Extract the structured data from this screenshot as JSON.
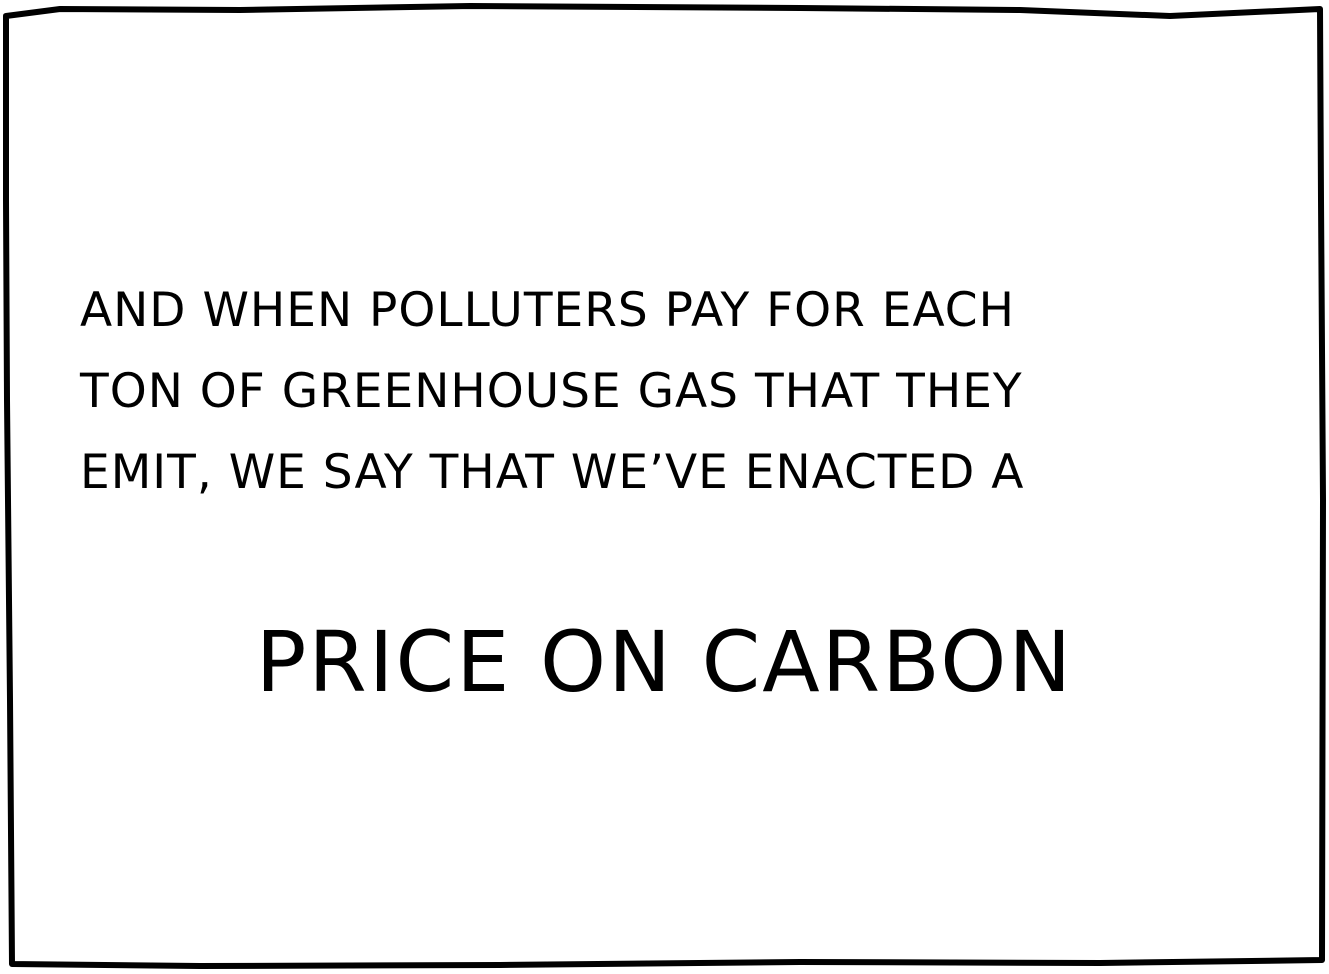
{
  "panel": {
    "caption_lines": [
      "AND WHEN POLLUTERS PAY FOR EACH",
      "TON OF GREENHOUSE GAS THAT THEY",
      "EMIT, WE SAY THAT WE’VE ENACTED A"
    ],
    "emphasis": "PRICE ON CARBON"
  }
}
